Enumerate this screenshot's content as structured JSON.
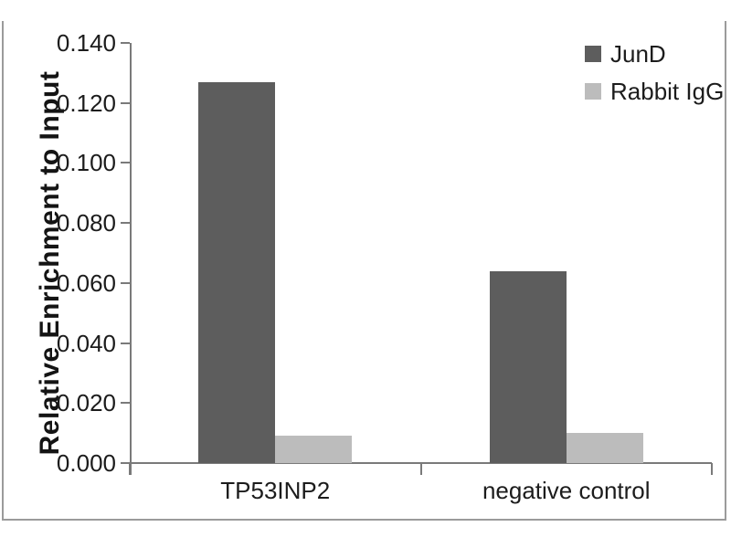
{
  "chart_data": {
    "type": "bar",
    "title": "",
    "ylabel": "Relative Enrichment to Input",
    "xlabel": "",
    "categories": [
      "TP53INP2",
      "negative control"
    ],
    "series": [
      {
        "name": "JunD",
        "color": "#5d5d5d",
        "values": [
          0.127,
          0.064
        ]
      },
      {
        "name": "Rabbit IgG",
        "color": "#bcbcbc",
        "values": [
          0.009,
          0.01
        ]
      }
    ],
    "ylim": [
      0.0,
      0.14
    ],
    "y_ticks": [
      "0.000",
      "0.020",
      "0.040",
      "0.060",
      "0.080",
      "0.100",
      "0.120",
      "0.140"
    ],
    "grid": false,
    "legend_position": "top-right",
    "colors": {
      "axis": "#7a7a7a",
      "frame": "#9b9b9b",
      "text": "#1c1c1c",
      "background": "#ffffff"
    }
  }
}
